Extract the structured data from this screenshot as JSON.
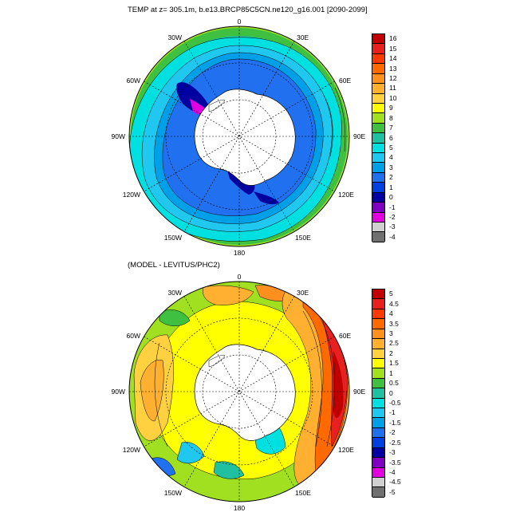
{
  "panels": [
    {
      "title": "TEMP at z= 305.1m, b.e13.BRCP85C5CN.ne120_g16.001 [2090-2099]",
      "lon_labels": [
        "0",
        "30E",
        "60E",
        "90E",
        "120E",
        "150E",
        "180",
        "150W",
        "120W",
        "90W",
        "60W",
        "30W"
      ],
      "colorbar": {
        "labels": [
          "16",
          "15",
          "14",
          "13",
          "12",
          "11",
          "10",
          "9",
          "8",
          "7",
          "6",
          "5",
          "4",
          "3",
          "2",
          "1",
          "0",
          "-1",
          "-2",
          "-3",
          "-4"
        ],
        "colors": [
          "#c00000",
          "#e82020",
          "#ff3a00",
          "#ff6a00",
          "#ff9020",
          "#ffb030",
          "#ffd040",
          "#ffff00",
          "#a0e020",
          "#40c040",
          "#20c0a0",
          "#00e0e0",
          "#20c8f0",
          "#00a0e8",
          "#2070f0",
          "#0040e0",
          "#0000a0",
          "#8000c0",
          "#e000e0",
          "#d0d0d0",
          "#707070"
        ]
      }
    },
    {
      "title": "(MODEL - LEVITUS/PHC2)",
      "lon_labels": [
        "0",
        "30E",
        "60E",
        "90E",
        "120E",
        "150E",
        "180",
        "150W",
        "120W",
        "90W",
        "60W",
        "30W"
      ],
      "colorbar": {
        "labels": [
          "5",
          "4.5",
          "4",
          "3.5",
          "3",
          "2.5",
          "2",
          "1.5",
          "1",
          "0.5",
          "0",
          "-0.5",
          "-1",
          "-1.5",
          "-2",
          "-2.5",
          "-3",
          "-3.5",
          "-4",
          "-4.5",
          "-5"
        ],
        "colors": [
          "#c00000",
          "#e82020",
          "#ff3a00",
          "#ff6a00",
          "#ff9020",
          "#ffb030",
          "#ffd040",
          "#ffff00",
          "#a0e020",
          "#40c040",
          "#20c0a0",
          "#00e0e0",
          "#20c8f0",
          "#00a0e8",
          "#2070f0",
          "#0040e0",
          "#0000a0",
          "#8000c0",
          "#e000e0",
          "#d0d0d0",
          "#707070"
        ]
      }
    }
  ]
}
